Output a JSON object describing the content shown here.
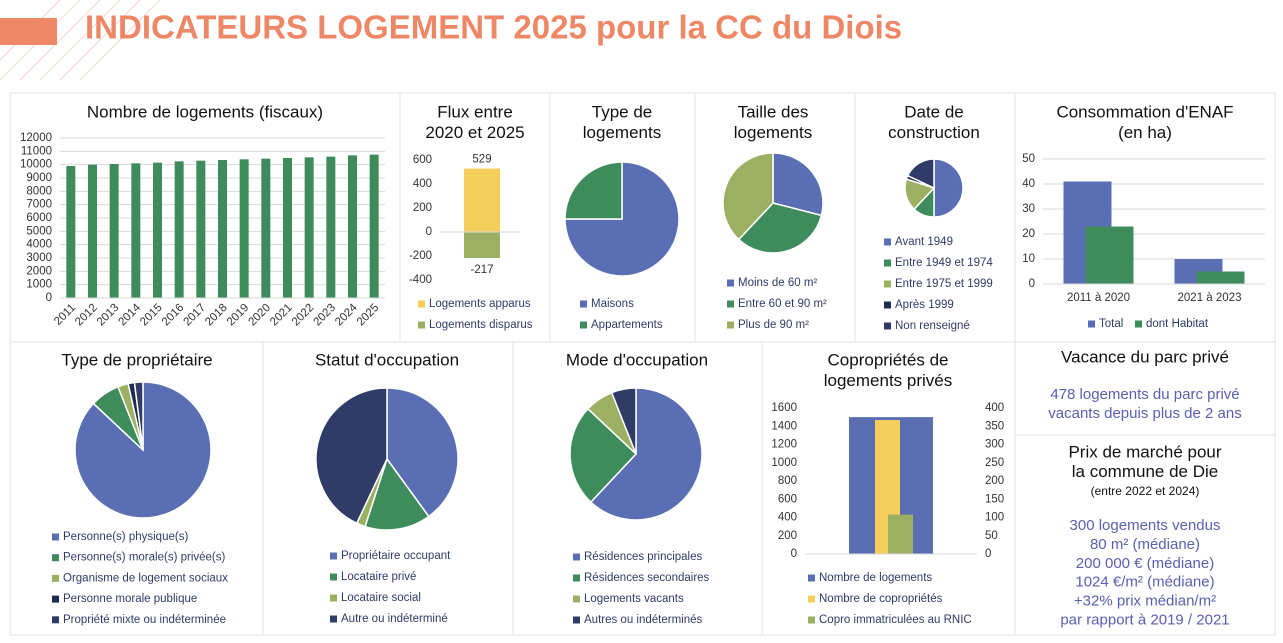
{
  "title": "INDICATEURS LOGEMENT 2025 pour la CC du Diois",
  "chart_data": [
    {
      "type": "bar",
      "title": [
        "Nombre de logements (fiscaux)"
      ],
      "categories": [
        "2011",
        "2012",
        "2013",
        "2014",
        "2015",
        "2016",
        "2017",
        "2018",
        "2019",
        "2020",
        "2021",
        "2022",
        "2023",
        "2024",
        "2025"
      ],
      "series": [
        {
          "name": "Nombre de logements",
          "color": "#3e8c5c",
          "values": [
            9900,
            10000,
            10050,
            10100,
            10150,
            10250,
            10300,
            10350,
            10400,
            10450,
            10500,
            10550,
            10600,
            10700,
            10750
          ]
        }
      ],
      "ylim": [
        0,
        12000
      ],
      "yticks": [
        0,
        1000,
        2000,
        3000,
        4000,
        5000,
        6000,
        7000,
        8000,
        9000,
        10000,
        11000,
        12000
      ],
      "grid": true,
      "legend": "none"
    },
    {
      "type": "bar",
      "title": [
        "Flux entre",
        "2020 et 2025"
      ],
      "stacked": true,
      "series": [
        {
          "name": "Logements apparus",
          "color": "#f5cf5b",
          "values": [
            529
          ]
        },
        {
          "name": "Logements disparus",
          "color": "#9bb063",
          "values": [
            -217
          ]
        }
      ],
      "ylim": [
        -400,
        600
      ],
      "yticks": [
        -400,
        -200,
        0,
        200,
        400,
        600
      ],
      "grid": false,
      "data_labels": true,
      "legend": "bottom"
    },
    {
      "type": "pie",
      "title": [
        "Type de",
        "logements"
      ],
      "categories": [
        "Maisons",
        "Appartements"
      ],
      "values": [
        75,
        25
      ],
      "colors": [
        "#5a6fb3",
        "#3e8c5c"
      ],
      "legend": "bottom"
    },
    {
      "type": "pie",
      "title": [
        "Taille des",
        "logements"
      ],
      "categories": [
        "Moins de 60 m²",
        "Entre 60 et 90 m²",
        "Plus de 90 m²"
      ],
      "values": [
        29,
        33,
        38
      ],
      "colors": [
        "#5a6fb3",
        "#3e8c5c",
        "#9bb063"
      ],
      "legend": "bottom"
    },
    {
      "type": "pie",
      "title": [
        "Date de",
        "construction"
      ],
      "categories": [
        "Avant 1949",
        "Entre 1949 et 1974",
        "Entre 1975 et 1999",
        "Après 1999",
        "Non renseigné"
      ],
      "values": [
        50,
        12,
        18,
        2,
        18
      ],
      "colors": [
        "#5a6fb3",
        "#3e8c5c",
        "#9bb063",
        "#1f2b4f",
        "#2f3c68"
      ],
      "legend": "bottom"
    },
    {
      "type": "bar",
      "title": [
        "Consommation d'ENAF",
        "(en ha)"
      ],
      "categories": [
        "2011 à 2020",
        "2021 à 2023"
      ],
      "series": [
        {
          "name": "Total",
          "color": "#5a6fb3",
          "values": [
            41,
            10
          ]
        },
        {
          "name": "dont Habitat",
          "color": "#3e8c5c",
          "values": [
            23,
            5
          ]
        }
      ],
      "ylim": [
        0,
        50
      ],
      "yticks": [
        0,
        10,
        20,
        30,
        40,
        50
      ],
      "grid": true,
      "legend": "bottom"
    },
    {
      "type": "pie",
      "title": [
        "Type de propriétaire"
      ],
      "categories": [
        "Personne(s) physique(s)",
        "Personne(s) morale(s) privée(s)",
        "Organisme de logement sociaux",
        "Personne morale publique",
        "Propriété mixte ou indéterminée"
      ],
      "values": [
        87,
        7,
        2.5,
        1.5,
        2
      ],
      "colors": [
        "#5a6fb3",
        "#3e8c5c",
        "#9bb063",
        "#1f2b4f",
        "#2f3c68"
      ],
      "legend": "bottom"
    },
    {
      "type": "pie",
      "title": [
        "Statut d'occupation"
      ],
      "categories": [
        "Propriétaire occupant",
        "Locataire privé",
        "Locataire social",
        "Autre ou indéterminé"
      ],
      "values": [
        40,
        15,
        2,
        43
      ],
      "colors": [
        "#5a6fb3",
        "#3e8c5c",
        "#9bb063",
        "#2f3c68"
      ],
      "legend": "bottom"
    },
    {
      "type": "pie",
      "title": [
        "Mode d'occupation"
      ],
      "categories": [
        "Résidences principales",
        "Résidences secondaires",
        "Logements vacants",
        "Autres ou indéterminés"
      ],
      "values": [
        62,
        25,
        7,
        6
      ],
      "colors": [
        "#5a6fb3",
        "#3e8c5c",
        "#9bb063",
        "#2f3c68"
      ],
      "legend": "bottom"
    },
    {
      "type": "bar",
      "title": [
        "Copropriétés de",
        "logements privés"
      ],
      "series": [
        {
          "name": "Nombre de logements",
          "color": "#5a6fb3",
          "values": [
            1500
          ]
        },
        {
          "name": "Nombre de copropriétés",
          "color": "#f5cf5b",
          "values": [
            367
          ],
          "axis": "y2"
        },
        {
          "name": "Copro immatriculées au RNIC",
          "color": "#9bb063",
          "values": [
            108
          ],
          "axis": "y2"
        }
      ],
      "ylim": [
        0,
        1600
      ],
      "yticks": [
        0,
        200,
        400,
        600,
        800,
        1000,
        1200,
        1400,
        1600
      ],
      "y2lim": [
        0,
        400
      ],
      "y2ticks": [
        0,
        50,
        100,
        150,
        200,
        250,
        300,
        350,
        400
      ],
      "grid": false,
      "legend": "bottom"
    }
  ],
  "panels": [
    {
      "title": [
        "Vacance du parc privé"
      ],
      "lines": [
        "478 logements du parc privé",
        "vacants depuis plus de 2 ans"
      ]
    },
    {
      "title": [
        "Prix de marché pour",
        "la commune de Die"
      ],
      "subtitle": "(entre 2022 et 2024)",
      "lines": [
        "300 logements vendus",
        "80 m² (médiane)",
        "200 000 € (médiane)",
        "1024 €/m² (médiane)",
        "+32% prix médian/m²",
        "par rapport à 2019 / 2021"
      ]
    }
  ]
}
